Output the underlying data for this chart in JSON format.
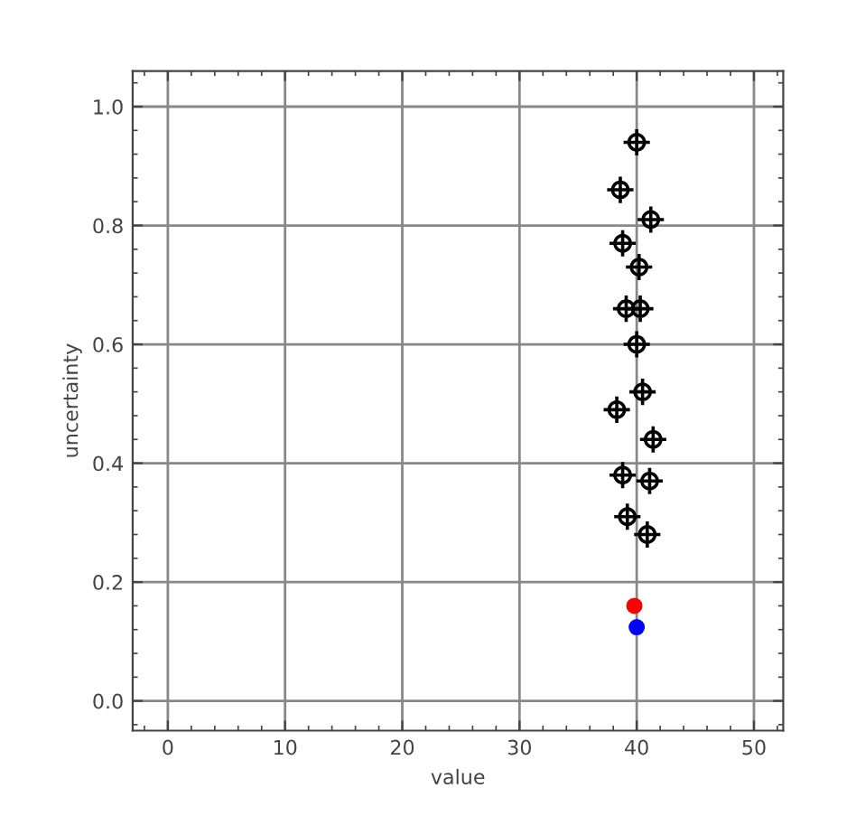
{
  "chart_data": {
    "type": "scatter",
    "xlabel": "value",
    "ylabel": "uncertainty",
    "xlim": [
      -3,
      52.5
    ],
    "ylim": [
      -0.05,
      1.06
    ],
    "xticks": [
      0,
      10,
      20,
      30,
      40,
      50
    ],
    "yticks": [
      {
        "value": 0,
        "label": "0.0"
      },
      {
        "value": 0.2,
        "label": "0.2"
      },
      {
        "value": 0.4,
        "label": "0.4"
      },
      {
        "value": 0.6,
        "label": "0.6"
      },
      {
        "value": 0.8,
        "label": "0.8"
      },
      {
        "value": 1,
        "label": "1.0"
      }
    ],
    "grid": true,
    "legend": false,
    "series": [
      {
        "color": "#000000",
        "marker": "cross",
        "x": [
          40.0,
          38.6,
          41.2,
          38.8,
          40.2,
          39.1,
          40.3,
          40.0,
          40.5,
          38.3,
          41.4,
          38.8,
          41.1,
          39.2,
          40.9
        ],
        "values": [
          0.94,
          0.86,
          0.81,
          0.77,
          0.73,
          0.66,
          0.66,
          0.6,
          0.52,
          0.49,
          0.44,
          0.38,
          0.37,
          0.31,
          0.28
        ]
      },
      {
        "color": "#ff0000",
        "marker": "circle",
        "x": [
          39.8
        ],
        "values": [
          0.16
        ]
      },
      {
        "color": "#0000ff",
        "marker": "circle",
        "x": [
          40.0
        ],
        "values": [
          0.124
        ]
      }
    ]
  }
}
